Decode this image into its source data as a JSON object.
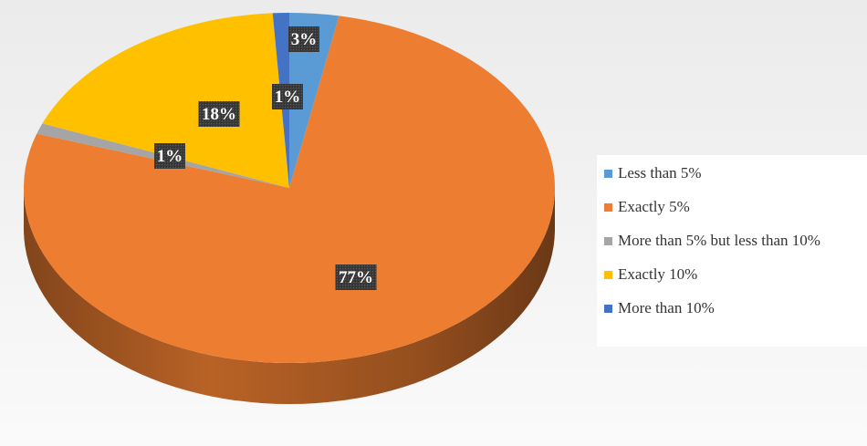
{
  "chart_data": {
    "type": "pie",
    "title": "",
    "slices": [
      {
        "label": "Less than 5%",
        "value": 3,
        "display": "3%",
        "color": "#5b9bd5"
      },
      {
        "label": "Exactly 5%",
        "value": 77,
        "display": "77%",
        "color": "#ed7d31"
      },
      {
        "label": "More than 5% but less than 10%",
        "value": 1,
        "display": "1%",
        "color": "#a5a5a5"
      },
      {
        "label": "Exactly 10%",
        "value": 18,
        "display": "18%",
        "color": "#ffc000"
      },
      {
        "label": "More than 10%",
        "value": 1,
        "display": "1%",
        "color": "#4472c4"
      }
    ],
    "legend": {
      "position": "right"
    },
    "style": "3d-pie"
  }
}
